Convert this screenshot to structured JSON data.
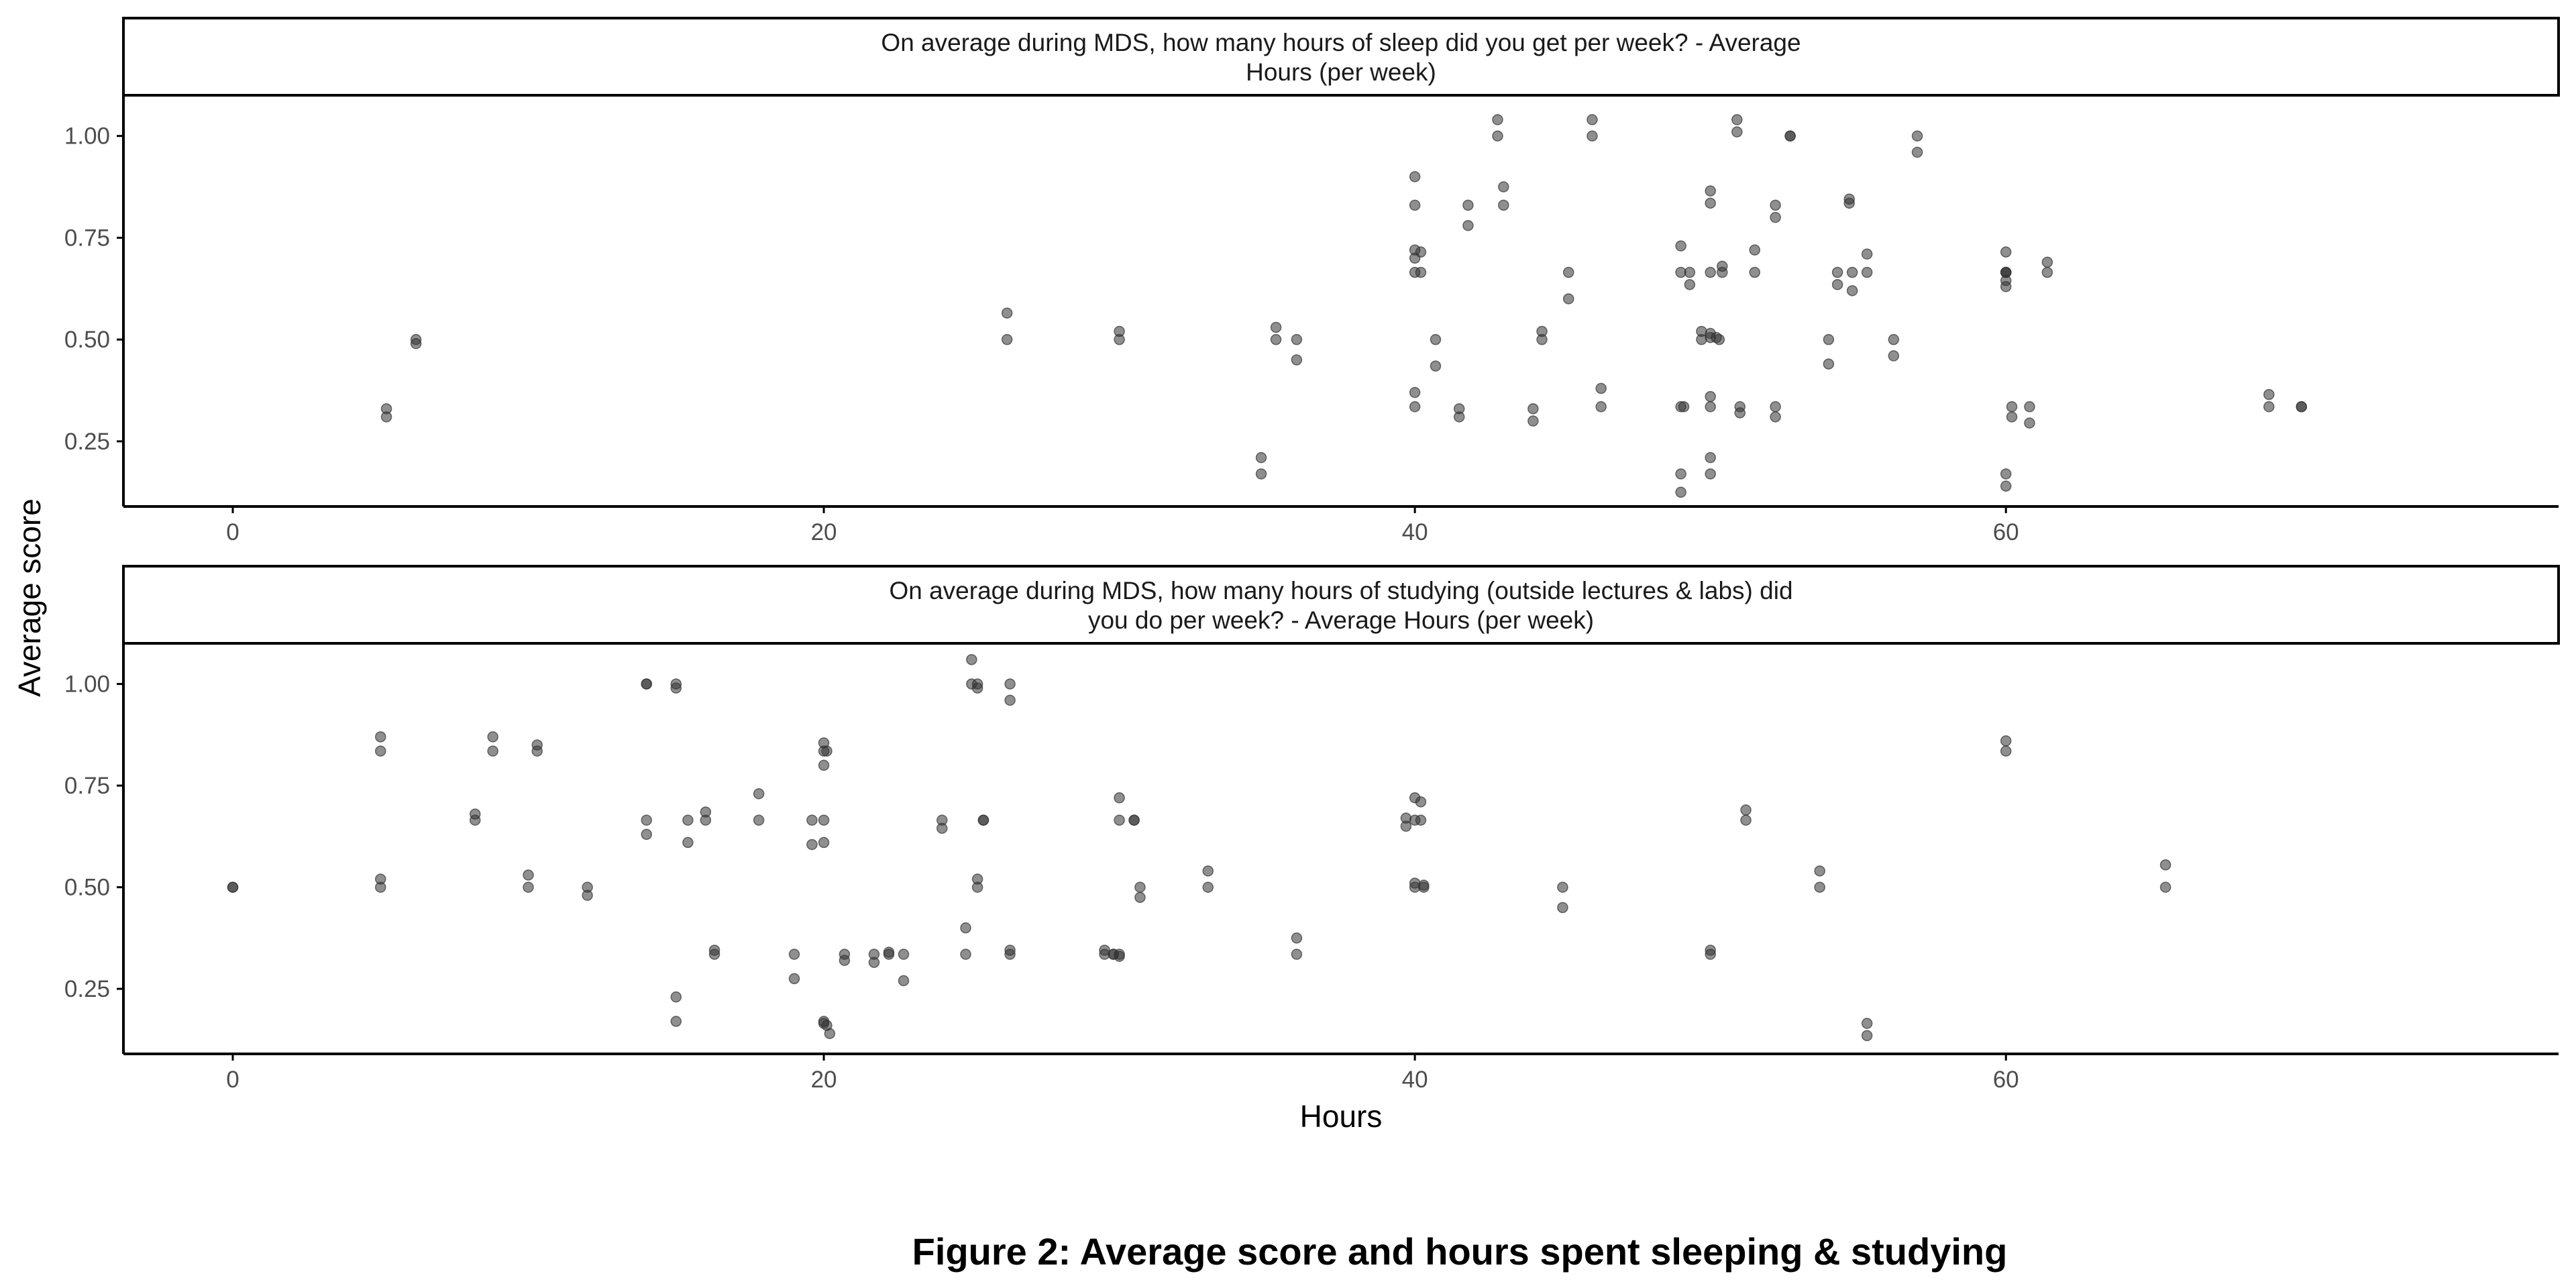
{
  "figure": {
    "caption": "Figure 2: Average score and hours spent sleeping & studying"
  },
  "colors": {
    "point": "#333333",
    "axis": "#000000",
    "tick_label": "#4d4d4d"
  },
  "chart_data": {
    "type": "scatter",
    "xlabel": "Hours",
    "ylabel": "Average score",
    "xlim": [
      -3.7,
      78.7
    ],
    "ylim": [
      0.09,
      1.1
    ],
    "x_ticks": [
      0,
      20,
      40,
      60
    ],
    "y_ticks": [
      0.25,
      0.5,
      0.75,
      1.0
    ],
    "y_tick_labels": [
      "0.25",
      "0.50",
      "0.75",
      "1.00"
    ],
    "grid": false,
    "panels": [
      {
        "strip_lines": [
          "On average during MDS, how many hours of sleep did you get per week? - Average",
          "Hours (per week)"
        ],
        "points": [
          [
            5.2,
            0.33
          ],
          [
            5.2,
            0.31
          ],
          [
            6.2,
            0.5
          ],
          [
            6.2,
            0.49
          ],
          [
            26.2,
            0.565
          ],
          [
            26.2,
            0.5
          ],
          [
            30.0,
            0.52
          ],
          [
            30.0,
            0.5
          ],
          [
            34.8,
            0.21
          ],
          [
            34.8,
            0.17
          ],
          [
            35.3,
            0.53
          ],
          [
            35.3,
            0.5
          ],
          [
            36.0,
            0.5
          ],
          [
            36.0,
            0.45
          ],
          [
            40.0,
            0.9
          ],
          [
            40.0,
            0.83
          ],
          [
            40.0,
            0.72
          ],
          [
            40.2,
            0.715
          ],
          [
            40.0,
            0.7
          ],
          [
            40.0,
            0.665
          ],
          [
            40.2,
            0.665
          ],
          [
            40.0,
            0.37
          ],
          [
            40.0,
            0.335
          ],
          [
            40.7,
            0.5
          ],
          [
            40.7,
            0.435
          ],
          [
            41.5,
            0.33
          ],
          [
            41.5,
            0.31
          ],
          [
            41.8,
            0.83
          ],
          [
            41.8,
            0.78
          ],
          [
            42.8,
            1.04
          ],
          [
            42.8,
            1.0
          ],
          [
            43.0,
            0.875
          ],
          [
            43.0,
            0.83
          ],
          [
            44.0,
            0.33
          ],
          [
            44.0,
            0.3
          ],
          [
            44.3,
            0.52
          ],
          [
            44.3,
            0.5
          ],
          [
            45.2,
            0.665
          ],
          [
            45.2,
            0.6
          ],
          [
            46.0,
            1.04
          ],
          [
            46.0,
            1.0
          ],
          [
            46.3,
            0.38
          ],
          [
            46.3,
            0.335
          ],
          [
            49.0,
            0.73
          ],
          [
            49.0,
            0.665
          ],
          [
            49.3,
            0.665
          ],
          [
            49.3,
            0.635
          ],
          [
            49.0,
            0.335
          ],
          [
            49.1,
            0.335
          ],
          [
            49.0,
            0.17
          ],
          [
            49.0,
            0.125
          ],
          [
            49.7,
            0.52
          ],
          [
            49.7,
            0.5
          ],
          [
            50.0,
            0.515
          ],
          [
            50.0,
            0.505
          ],
          [
            50.2,
            0.505
          ],
          [
            50.3,
            0.5
          ],
          [
            50.0,
            0.865
          ],
          [
            50.0,
            0.835
          ],
          [
            50.0,
            0.665
          ],
          [
            50.4,
            0.68
          ],
          [
            50.4,
            0.665
          ],
          [
            50.0,
            0.36
          ],
          [
            50.0,
            0.335
          ],
          [
            50.0,
            0.21
          ],
          [
            50.0,
            0.17
          ],
          [
            50.9,
            1.04
          ],
          [
            50.9,
            1.01
          ],
          [
            51.0,
            0.335
          ],
          [
            51.0,
            0.32
          ],
          [
            51.5,
            0.72
          ],
          [
            51.5,
            0.665
          ],
          [
            52.2,
            0.83
          ],
          [
            52.2,
            0.8
          ],
          [
            52.2,
            0.335
          ],
          [
            52.2,
            0.31
          ],
          [
            52.7,
            1.0
          ],
          [
            52.7,
            1.0
          ],
          [
            54.0,
            0.5
          ],
          [
            54.0,
            0.44
          ],
          [
            54.3,
            0.665
          ],
          [
            54.3,
            0.635
          ],
          [
            54.7,
            0.845
          ],
          [
            54.7,
            0.835
          ],
          [
            54.8,
            0.665
          ],
          [
            54.8,
            0.62
          ],
          [
            55.3,
            0.71
          ],
          [
            55.3,
            0.665
          ],
          [
            56.2,
            0.5
          ],
          [
            56.2,
            0.46
          ],
          [
            57.0,
            1.0
          ],
          [
            57.0,
            0.96
          ],
          [
            60.0,
            0.715
          ],
          [
            60.0,
            0.665
          ],
          [
            60.0,
            0.665
          ],
          [
            60.0,
            0.665
          ],
          [
            60.0,
            0.645
          ],
          [
            60.0,
            0.63
          ],
          [
            60.0,
            0.17
          ],
          [
            60.0,
            0.14
          ],
          [
            60.2,
            0.335
          ],
          [
            60.2,
            0.31
          ],
          [
            60.8,
            0.335
          ],
          [
            60.8,
            0.295
          ],
          [
            61.4,
            0.69
          ],
          [
            61.4,
            0.665
          ],
          [
            68.9,
            0.365
          ],
          [
            68.9,
            0.335
          ],
          [
            70.0,
            0.335
          ],
          [
            70.0,
            0.335
          ]
        ]
      },
      {
        "strip_lines": [
          "On average during MDS, how many hours of studying (outside lectures & labs) did",
          "you do per week? - Average Hours (per week)"
        ],
        "points": [
          [
            0.0,
            0.5
          ],
          [
            0.0,
            0.5
          ],
          [
            5.0,
            0.87
          ],
          [
            5.0,
            0.835
          ],
          [
            5.0,
            0.52
          ],
          [
            5.0,
            0.5
          ],
          [
            8.2,
            0.68
          ],
          [
            8.2,
            0.665
          ],
          [
            8.8,
            0.87
          ],
          [
            8.8,
            0.835
          ],
          [
            10.0,
            0.53
          ],
          [
            10.0,
            0.5
          ],
          [
            10.3,
            0.85
          ],
          [
            10.3,
            0.835
          ],
          [
            12.0,
            0.5
          ],
          [
            12.0,
            0.48
          ],
          [
            14.0,
            1.0
          ],
          [
            14.0,
            1.0
          ],
          [
            14.0,
            0.665
          ],
          [
            14.0,
            0.63
          ],
          [
            15.0,
            1.0
          ],
          [
            15.0,
            0.99
          ],
          [
            15.0,
            0.23
          ],
          [
            15.0,
            0.17
          ],
          [
            15.4,
            0.665
          ],
          [
            15.4,
            0.61
          ],
          [
            16.0,
            0.685
          ],
          [
            16.0,
            0.665
          ],
          [
            16.3,
            0.345
          ],
          [
            16.3,
            0.335
          ],
          [
            17.8,
            0.73
          ],
          [
            17.8,
            0.665
          ],
          [
            19.0,
            0.335
          ],
          [
            19.0,
            0.275
          ],
          [
            19.6,
            0.665
          ],
          [
            19.6,
            0.605
          ],
          [
            20.0,
            0.665
          ],
          [
            20.0,
            0.61
          ],
          [
            20.0,
            0.855
          ],
          [
            20.0,
            0.835
          ],
          [
            20.1,
            0.835
          ],
          [
            20.0,
            0.8
          ],
          [
            20.0,
            0.17
          ],
          [
            20.1,
            0.16
          ],
          [
            20.0,
            0.165
          ],
          [
            20.2,
            0.14
          ],
          [
            20.7,
            0.335
          ],
          [
            20.7,
            0.32
          ],
          [
            21.7,
            0.335
          ],
          [
            21.7,
            0.315
          ],
          [
            22.2,
            0.34
          ],
          [
            22.2,
            0.335
          ],
          [
            22.7,
            0.335
          ],
          [
            22.7,
            0.27
          ],
          [
            24.0,
            0.665
          ],
          [
            24.0,
            0.645
          ],
          [
            24.8,
            0.4
          ],
          [
            24.8,
            0.335
          ],
          [
            25.0,
            1.06
          ],
          [
            25.0,
            1.0
          ],
          [
            25.2,
            1.0
          ],
          [
            25.2,
            0.99
          ],
          [
            25.2,
            0.52
          ],
          [
            25.2,
            0.5
          ],
          [
            25.4,
            0.665
          ],
          [
            25.4,
            0.665
          ],
          [
            26.3,
            1.0
          ],
          [
            26.3,
            0.96
          ],
          [
            26.3,
            0.345
          ],
          [
            26.3,
            0.335
          ],
          [
            29.5,
            0.345
          ],
          [
            29.5,
            0.335
          ],
          [
            29.8,
            0.335
          ],
          [
            29.8,
            0.335
          ],
          [
            30.0,
            0.335
          ],
          [
            30.0,
            0.33
          ],
          [
            30.0,
            0.72
          ],
          [
            30.0,
            0.665
          ],
          [
            30.5,
            0.665
          ],
          [
            30.5,
            0.665
          ],
          [
            30.7,
            0.5
          ],
          [
            30.7,
            0.475
          ],
          [
            33.0,
            0.54
          ],
          [
            33.0,
            0.5
          ],
          [
            36.0,
            0.375
          ],
          [
            36.0,
            0.335
          ],
          [
            39.7,
            0.67
          ],
          [
            39.7,
            0.65
          ],
          [
            40.0,
            0.72
          ],
          [
            40.2,
            0.71
          ],
          [
            40.0,
            0.665
          ],
          [
            40.2,
            0.665
          ],
          [
            40.0,
            0.51
          ],
          [
            40.0,
            0.5
          ],
          [
            40.3,
            0.505
          ],
          [
            40.3,
            0.5
          ],
          [
            45.0,
            0.5
          ],
          [
            45.0,
            0.45
          ],
          [
            50.0,
            0.345
          ],
          [
            50.0,
            0.335
          ],
          [
            51.2,
            0.69
          ],
          [
            51.2,
            0.665
          ],
          [
            53.7,
            0.54
          ],
          [
            53.7,
            0.5
          ],
          [
            55.3,
            0.165
          ],
          [
            55.3,
            0.135
          ],
          [
            60.0,
            0.86
          ],
          [
            60.0,
            0.835
          ],
          [
            65.4,
            0.555
          ],
          [
            65.4,
            0.5
          ]
        ]
      }
    ]
  }
}
